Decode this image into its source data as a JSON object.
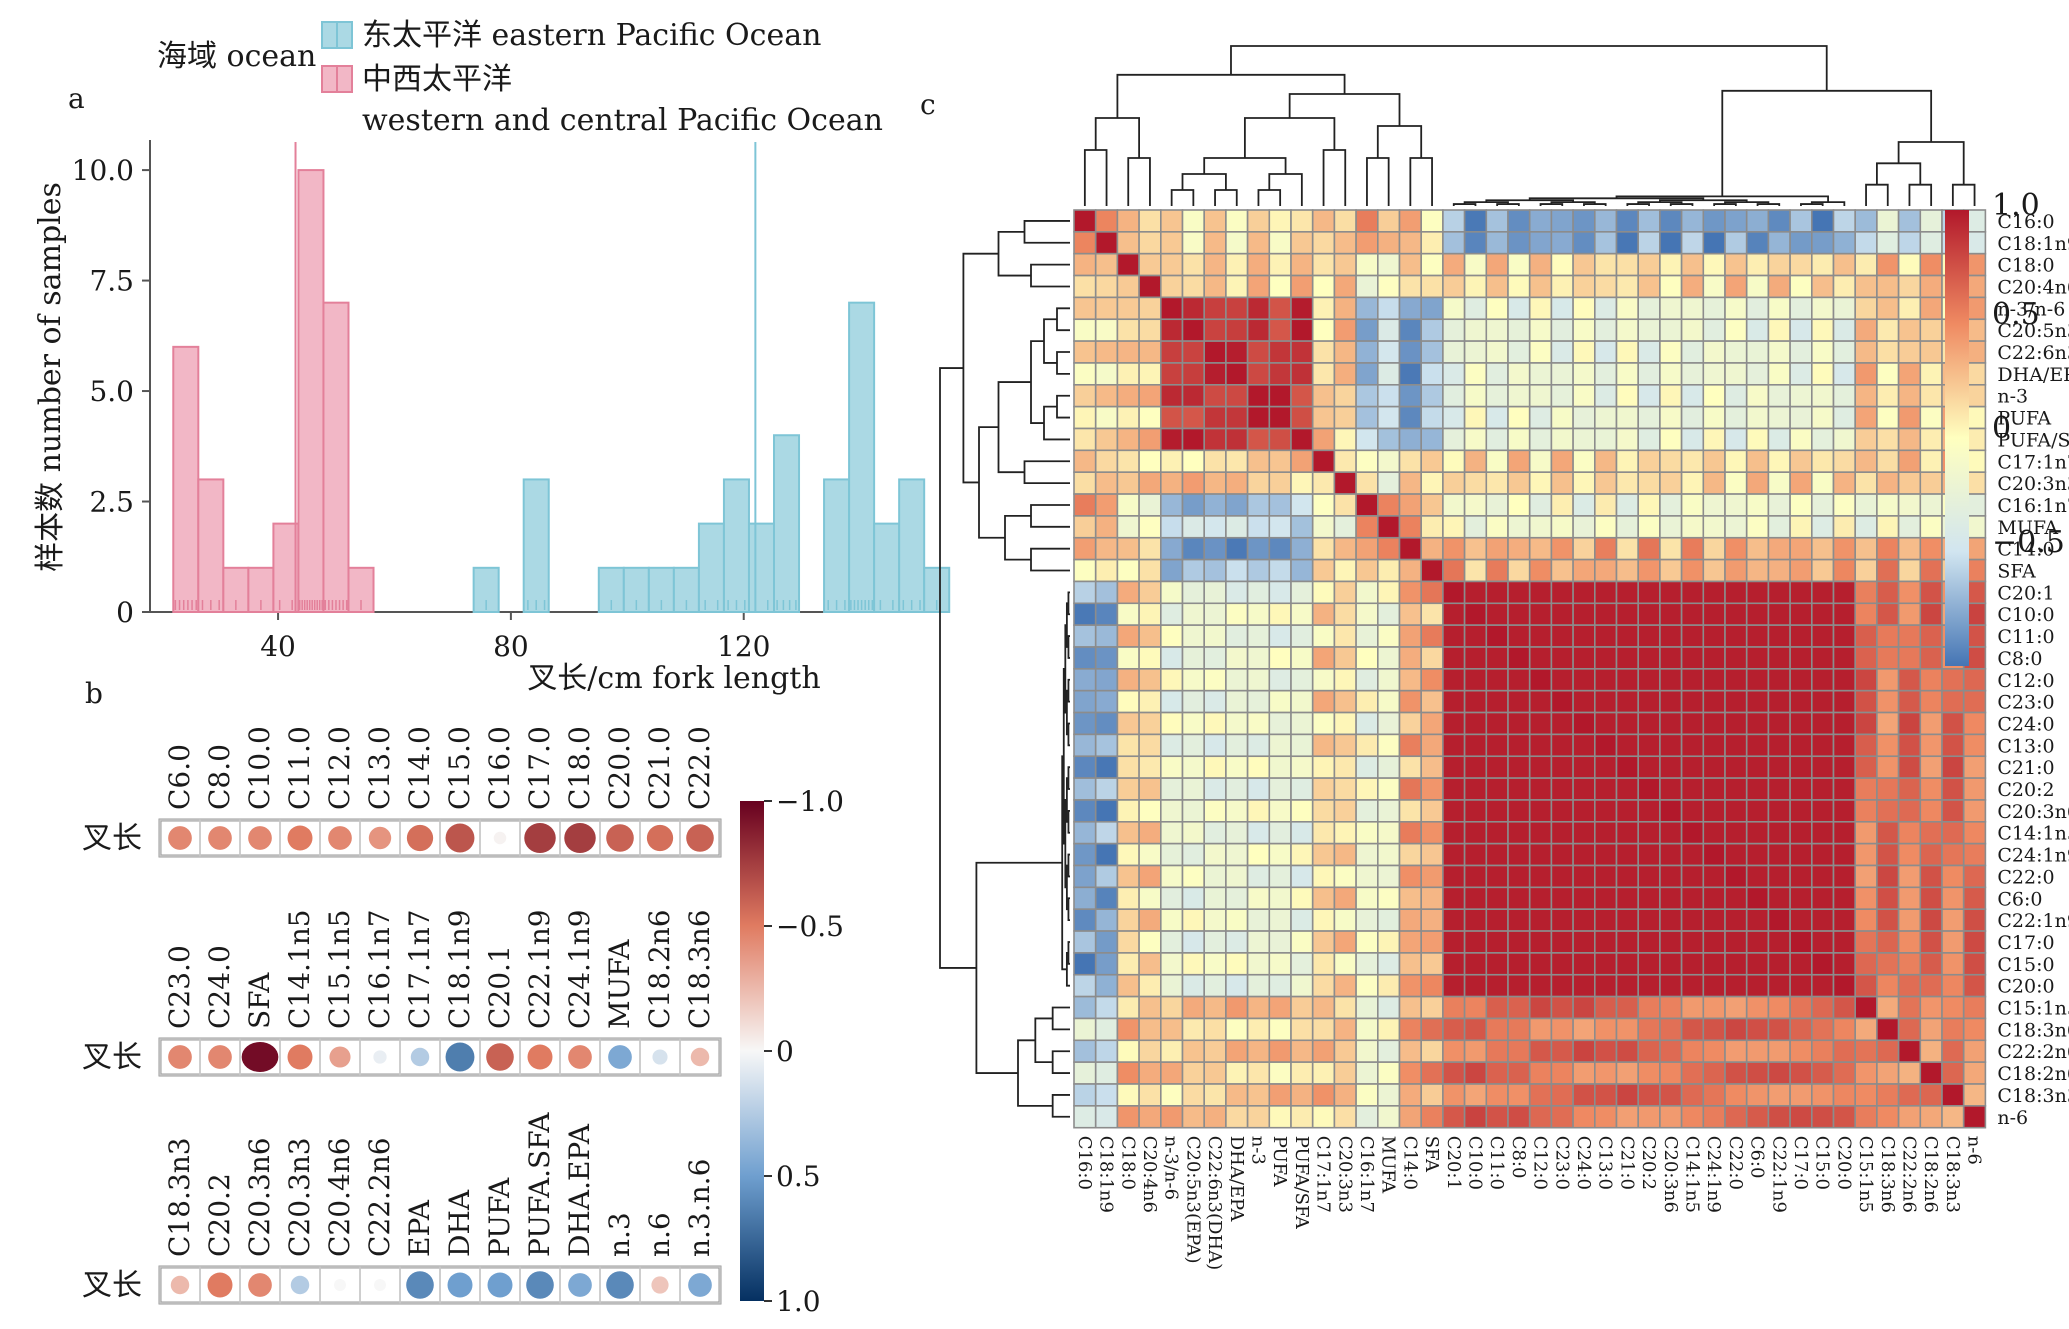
{
  "colors": {
    "pink_fill": "#f2b7c6",
    "pink_edge": "#e3809a",
    "blue_fill": "#abd9e4",
    "blue_edge": "#7ec5d6",
    "cell_border": "#8c8c8c"
  },
  "chart_data": [
    {
      "panel": "a",
      "type": "bar",
      "legend_title": "海域 ocean",
      "legend": [
        "东太平洋 eastern Pacific Ocean",
        "中西太平洋",
        "western and central Pacific Ocean"
      ],
      "xlabel": "叉长/cm fork length",
      "ylabel": "样本数 number of samples",
      "xticks": [
        40,
        80,
        120
      ],
      "yticks": [
        "0",
        "2.5",
        "5.0",
        "7.5",
        "10.0"
      ],
      "xlim": [
        18,
        152
      ],
      "ylim": [
        0,
        10.5
      ],
      "bin_width": 4.3,
      "series": [
        {
          "key": "wcpo",
          "bin_starts": [
            22,
            26.3,
            30.6,
            34.9,
            39.2,
            43.5,
            47.8,
            52.1,
            56.4
          ],
          "values": [
            6,
            3,
            1,
            1,
            2,
            10,
            7,
            1,
            0
          ],
          "mean": 43
        },
        {
          "key": "epo",
          "bin_starts": [
            73.6,
            82.2,
            95.1,
            99.4,
            103.7,
            108,
            112.3,
            116.6,
            120.9,
            125.2,
            133.8,
            138.1,
            142.4,
            146.7,
            151
          ],
          "values": [
            1,
            3,
            1,
            1,
            1,
            1,
            2,
            3,
            2,
            4,
            3,
            7,
            2,
            3,
            1
          ],
          "mean": 122
        }
      ]
    },
    {
      "panel": "b",
      "type": "heatmap",
      "row_label": "叉长",
      "colorbar_ticks": [
        "−1.0",
        "−0.5",
        "0",
        "0.5",
        "1.0"
      ],
      "rows": [
        {
          "labels": [
            "C6.0",
            "C8.0",
            "C10.0",
            "C11.0",
            "C12.0",
            "C13.0",
            "C14.0",
            "C15.0",
            "C16.0",
            "C17.0",
            "C18.0",
            "C20.0",
            "C21.0",
            "C22.0"
          ],
          "values": [
            -0.45,
            -0.45,
            -0.45,
            -0.5,
            -0.45,
            -0.4,
            -0.55,
            -0.65,
            -0.02,
            -0.75,
            -0.75,
            -0.6,
            -0.55,
            -0.6
          ]
        },
        {
          "labels": [
            "C23.0",
            "C24.0",
            "SFA",
            "C14.1n5",
            "C15.1n5",
            "C16.1n7",
            "C17.1n7",
            "C18.1n9",
            "C20.1",
            "C22.1n9",
            "C24.1n9",
            "MUFA",
            "C18.2n6",
            "C18.3n6"
          ],
          "values": [
            -0.45,
            -0.45,
            -0.95,
            -0.5,
            -0.35,
            0.05,
            0.25,
            0.65,
            -0.6,
            -0.5,
            -0.45,
            0.45,
            0.12,
            -0.25
          ]
        },
        {
          "labels": [
            "C18.3n3",
            "C20.2",
            "C20.3n6",
            "C20.3n3",
            "C20.4n6",
            "C22.2n6",
            "EPA",
            "DHA",
            "PUFA",
            "PUFA.SFA",
            "DHA.EPA",
            "n.3",
            "n.6",
            "n.3.n.6"
          ],
          "values": [
            -0.25,
            -0.5,
            -0.45,
            0.25,
            0,
            0,
            0.6,
            0.5,
            0.5,
            0.6,
            0.45,
            0.6,
            -0.2,
            0.45
          ]
        }
      ]
    },
    {
      "panel": "c",
      "type": "heatmap",
      "labels": [
        "C16:0",
        "C18:1n9",
        "C18:0",
        "C20:4n6",
        "n-3/n-6",
        "C20:5n3(EPA)",
        "C22:6n3(DHA)",
        "DHA/EPA",
        "n-3",
        "PUFA",
        "PUFA/SFA",
        "C17:1n7",
        "C20:3n3",
        "C16:1n7",
        "MUFA",
        "C14:0",
        "SFA",
        "C20:1",
        "C10:0",
        "C11:0",
        "C8:0",
        "C12:0",
        "C23:0",
        "C24:0",
        "C13:0",
        "C21:0",
        "C20:2",
        "C20:3n6",
        "C14:1n5",
        "C24:1n9",
        "C22:0",
        "C6:0",
        "C22:1n9",
        "C17:0",
        "C15:0",
        "C20:0",
        "C15:1n5",
        "C18:3n6",
        "C22:2n6",
        "C18:2n6",
        "C18:3n3",
        "n-6"
      ],
      "groups": [
        "A",
        "A",
        "B",
        "B",
        "C",
        "C",
        "C",
        "C",
        "C",
        "C",
        "C",
        "B",
        "B",
        "D",
        "D",
        "E",
        "E",
        "F",
        "F",
        "F",
        "F",
        "F",
        "F",
        "F",
        "F",
        "F",
        "F",
        "F",
        "F",
        "F",
        "F",
        "F",
        "F",
        "F",
        "F",
        "F",
        "G",
        "G",
        "G",
        "G",
        "G",
        "G"
      ],
      "colorbar_ticks": [
        "1.0",
        "0.5",
        "0",
        "−0.5"
      ]
    }
  ],
  "panel_labels": {
    "a": "a",
    "b": "b",
    "c": "c"
  }
}
